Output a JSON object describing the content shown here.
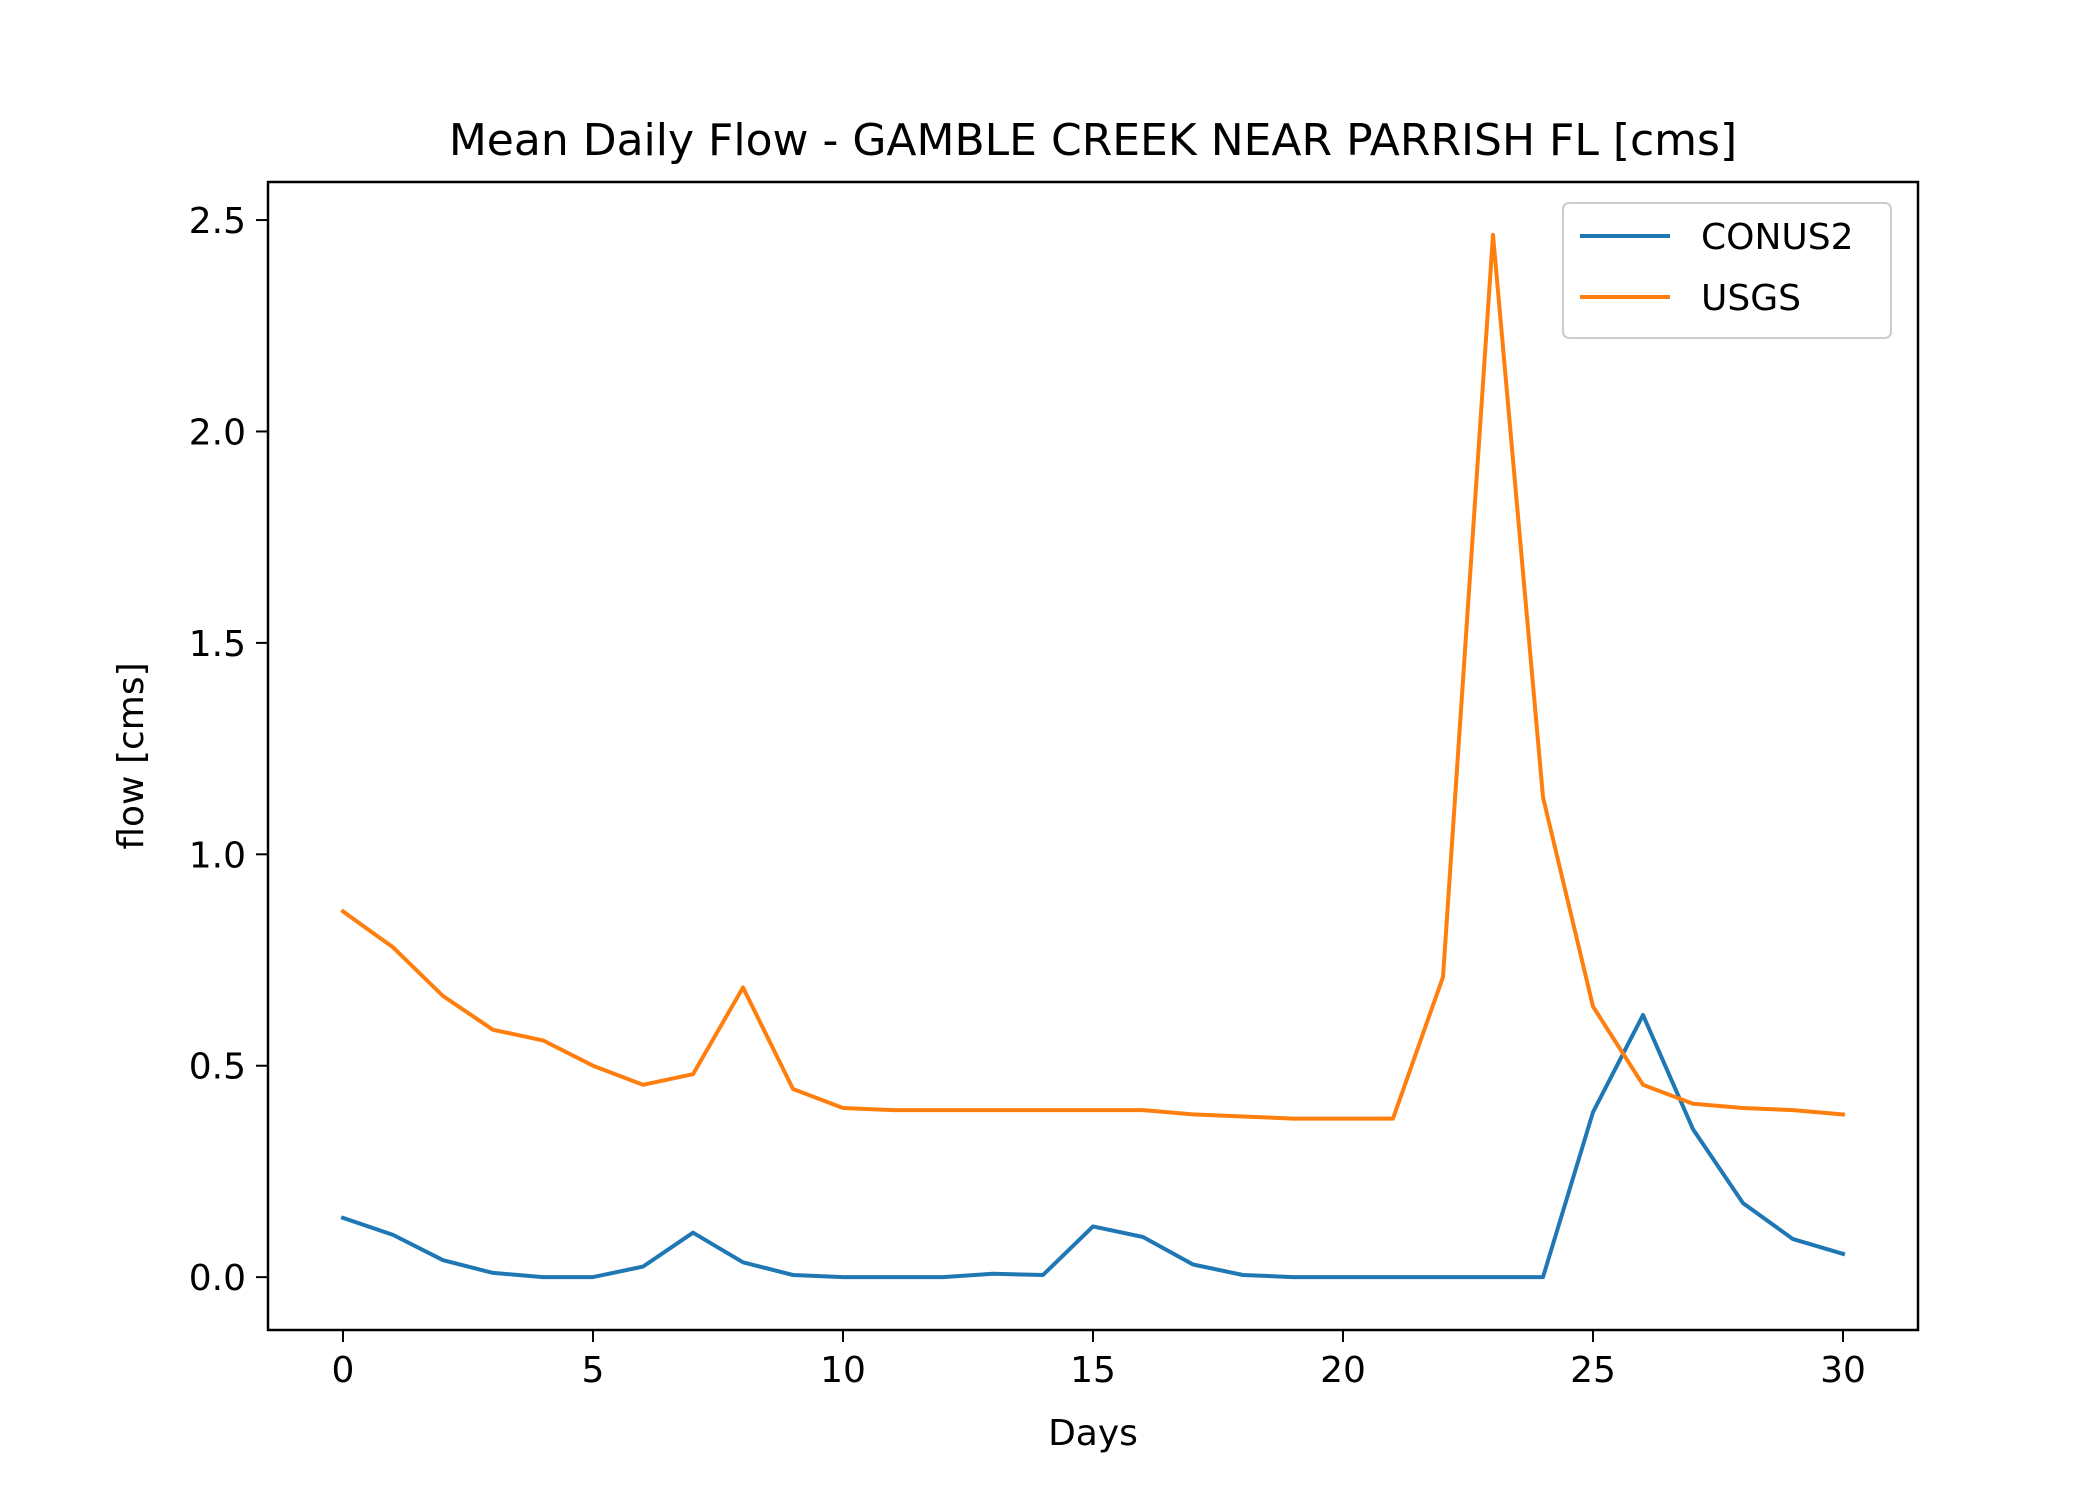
{
  "chart_data": {
    "type": "line",
    "title": "Mean Daily Flow - GAMBLE CREEK NEAR PARRISH FL [cms]",
    "xlabel": "Days",
    "ylabel": "flow [cms]",
    "xlim": [
      -1.5,
      31.5
    ],
    "ylim": [
      -0.125,
      2.59
    ],
    "xticks": [
      0,
      5,
      10,
      15,
      20,
      25,
      30
    ],
    "xtick_labels": [
      "0",
      "5",
      "10",
      "15",
      "20",
      "25",
      "30"
    ],
    "yticks": [
      0.0,
      0.5,
      1.0,
      1.5,
      2.0,
      2.5
    ],
    "ytick_labels": [
      "0.0",
      "0.5",
      "1.0",
      "1.5",
      "2.0",
      "2.5"
    ],
    "grid": false,
    "legend_position": "top-right",
    "x": [
      0,
      1,
      2,
      3,
      4,
      5,
      6,
      7,
      8,
      9,
      10,
      11,
      12,
      13,
      14,
      15,
      16,
      17,
      18,
      19,
      20,
      21,
      22,
      23,
      24,
      25,
      26,
      27,
      28,
      29,
      30
    ],
    "series": [
      {
        "name": "CONUS2",
        "color": "#1f77b4",
        "values": [
          0.14,
          0.1,
          0.04,
          0.01,
          0.0,
          0.0,
          0.025,
          0.105,
          0.035,
          0.005,
          0.0,
          0.0,
          0.0,
          0.008,
          0.005,
          0.12,
          0.095,
          0.03,
          0.005,
          0.0,
          0.0,
          0.0,
          0.0,
          0.0,
          0.0,
          0.39,
          0.62,
          0.35,
          0.175,
          0.09,
          0.055
        ]
      },
      {
        "name": "USGS",
        "color": "#ff7f0e",
        "values": [
          0.865,
          0.78,
          0.665,
          0.585,
          0.56,
          0.5,
          0.455,
          0.48,
          0.685,
          0.445,
          0.4,
          0.395,
          0.395,
          0.395,
          0.395,
          0.395,
          0.395,
          0.385,
          0.38,
          0.375,
          0.375,
          0.375,
          0.71,
          2.465,
          1.135,
          0.64,
          0.455,
          0.41,
          0.4,
          0.395,
          0.385
        ]
      }
    ]
  }
}
